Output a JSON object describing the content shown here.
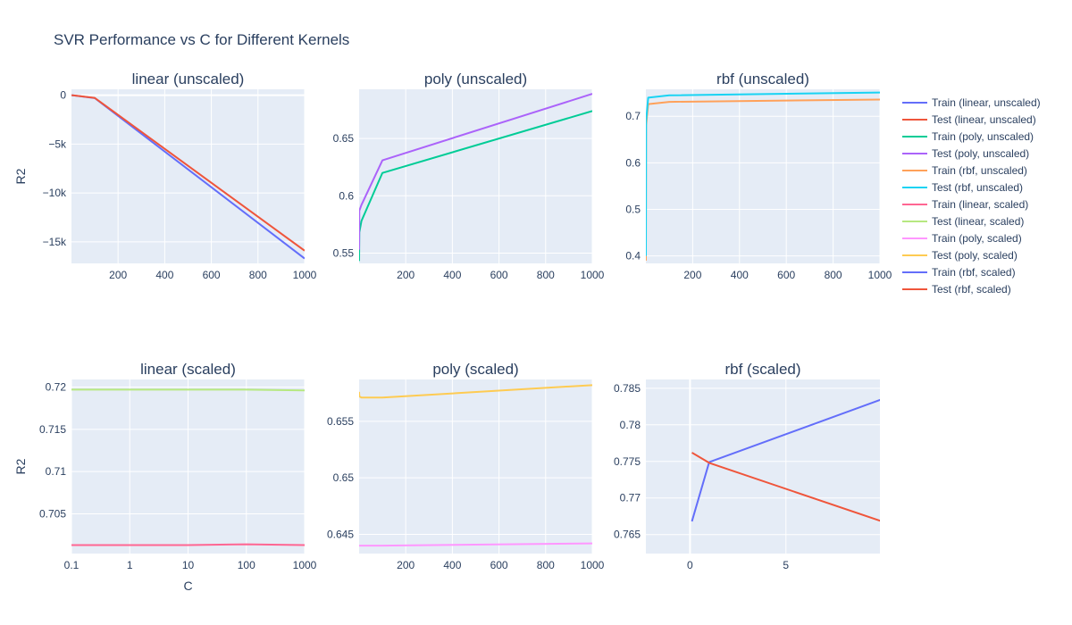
{
  "title": "SVR Performance vs C for Different Kernels",
  "chart_data": [
    {
      "type": "line",
      "title": "linear (unscaled)",
      "xlabel": "",
      "ylabel": "R2",
      "xscale": "linear",
      "xlim": [
        0.1,
        1000
      ],
      "ylim": [
        -17200,
        600
      ],
      "xticks": [
        200,
        400,
        600,
        800,
        1000
      ],
      "xtick_labels": [
        "200",
        "400",
        "600",
        "800",
        "1000"
      ],
      "yticks": [
        0,
        -5000,
        -10000,
        -15000
      ],
      "ytick_labels": [
        "0",
        "−5k",
        "−10k",
        "−15k"
      ],
      "series": [
        {
          "name": "Train (linear, unscaled)",
          "x": [
            0.1,
            1,
            10,
            100,
            1000
          ],
          "y": [
            0.72,
            -10,
            -30,
            -300,
            -16700
          ]
        },
        {
          "name": "Test (linear, unscaled)",
          "x": [
            0.1,
            1,
            10,
            100,
            1000
          ],
          "y": [
            0.72,
            -9,
            -28,
            -280,
            -15900
          ]
        }
      ]
    },
    {
      "type": "line",
      "title": "poly (unscaled)",
      "xlabel": "",
      "ylabel": "",
      "xscale": "linear",
      "xlim": [
        0.1,
        1000
      ],
      "ylim": [
        0.541,
        0.693
      ],
      "xticks": [
        200,
        400,
        600,
        800,
        1000
      ],
      "xtick_labels": [
        "200",
        "400",
        "600",
        "800",
        "1000"
      ],
      "yticks": [
        0.55,
        0.6,
        0.65
      ],
      "ytick_labels": [
        "0.55",
        "0.6",
        "0.65"
      ],
      "series": [
        {
          "name": "Train (poly, unscaled)",
          "x": [
            0.1,
            1,
            10,
            100,
            1000
          ],
          "y": [
            0.543,
            0.568,
            0.578,
            0.62,
            0.674
          ]
        },
        {
          "name": "Test (poly, unscaled)",
          "x": [
            0.1,
            1,
            10,
            100,
            1000
          ],
          "y": [
            0.553,
            0.587,
            0.592,
            0.631,
            0.689
          ]
        }
      ]
    },
    {
      "type": "line",
      "title": "rbf (unscaled)",
      "xlabel": "",
      "ylabel": "",
      "xscale": "linear",
      "xlim": [
        0.1,
        1000
      ],
      "ylim": [
        0.384,
        0.758
      ],
      "xticks": [
        200,
        400,
        600,
        800,
        1000
      ],
      "xtick_labels": [
        "200",
        "400",
        "600",
        "800",
        "1000"
      ],
      "yticks": [
        0.4,
        0.5,
        0.6,
        0.7
      ],
      "ytick_labels": [
        "0.4",
        "0.5",
        "0.6",
        "0.7"
      ],
      "series": [
        {
          "name": "Train (rbf, unscaled)",
          "x": [
            0.1,
            1,
            10,
            100,
            1000
          ],
          "y": [
            0.39,
            0.68,
            0.726,
            0.731,
            0.736
          ]
        },
        {
          "name": "Test (rbf, unscaled)",
          "x": [
            0.1,
            1,
            10,
            100,
            1000
          ],
          "y": [
            0.4,
            0.69,
            0.74,
            0.745,
            0.751
          ]
        }
      ]
    },
    {
      "type": "line",
      "title": "linear (scaled)",
      "xlabel": "C",
      "ylabel": "R2",
      "xscale": "log",
      "xlim": [
        0.1,
        1000
      ],
      "ylim": [
        0.7003,
        0.7209
      ],
      "xticks": [
        0.1,
        1,
        10,
        100,
        1000
      ],
      "xtick_labels": [
        "0.1",
        "1",
        "10",
        "100",
        "1000"
      ],
      "yticks": [
        0.705,
        0.71,
        0.715,
        0.72
      ],
      "ytick_labels": [
        "0.705",
        "0.71",
        "0.715",
        "0.72"
      ],
      "series": [
        {
          "name": "Train (linear, scaled)",
          "x": [
            0.1,
            1,
            10,
            100,
            1000
          ],
          "y": [
            0.7013,
            0.7013,
            0.7013,
            0.7014,
            0.7013
          ]
        },
        {
          "name": "Test (linear, scaled)",
          "x": [
            0.1,
            1,
            10,
            100,
            1000
          ],
          "y": [
            0.7197,
            0.7197,
            0.7197,
            0.7197,
            0.7196
          ]
        }
      ]
    },
    {
      "type": "line",
      "title": "poly (scaled)",
      "xlabel": "",
      "ylabel": "",
      "xscale": "linear",
      "xlim": [
        0.1,
        1000
      ],
      "ylim": [
        0.6433,
        0.6587
      ],
      "xticks": [
        200,
        400,
        600,
        800,
        1000
      ],
      "xtick_labels": [
        "200",
        "400",
        "600",
        "800",
        "1000"
      ],
      "yticks": [
        0.645,
        0.65,
        0.655
      ],
      "ytick_labels": [
        "0.645",
        "0.65",
        "0.655"
      ],
      "series": [
        {
          "name": "Train (poly, scaled)",
          "x": [
            0.1,
            1,
            10,
            100,
            1000
          ],
          "y": [
            0.644,
            0.644,
            0.644,
            0.644,
            0.6442
          ]
        },
        {
          "name": "Test (poly, scaled)",
          "x": [
            0.1,
            1,
            10,
            100,
            1000
          ],
          "y": [
            0.6576,
            0.6572,
            0.6571,
            0.6571,
            0.6582
          ]
        }
      ]
    },
    {
      "type": "line",
      "title": "rbf (scaled)",
      "xlabel": "",
      "ylabel": "",
      "xscale": "linear",
      "xlim": [
        -2.3,
        9.9
      ],
      "ylim": [
        0.7624,
        0.7862
      ],
      "xticks": [
        0,
        5
      ],
      "xtick_labels": [
        "0",
        "5"
      ],
      "yticks": [
        0.765,
        0.77,
        0.775,
        0.78,
        0.785
      ],
      "ytick_labels": [
        "0.765",
        "0.77",
        "0.775",
        "0.78",
        "0.785"
      ],
      "series": [
        {
          "name": "Train (rbf, scaled)",
          "x": [
            0.1,
            1,
            10
          ],
          "y": [
            0.7668,
            0.7749,
            0.7835
          ]
        },
        {
          "name": "Test (rbf, scaled)",
          "x": [
            0.1,
            1,
            10
          ],
          "y": [
            0.7762,
            0.7748,
            0.7668
          ]
        }
      ]
    }
  ],
  "legend": {
    "placement": "right",
    "items": [
      {
        "label": "Train (linear, unscaled)",
        "color": "#636efa"
      },
      {
        "label": "Test (linear, unscaled)",
        "color": "#EF553B"
      },
      {
        "label": "Train (poly, unscaled)",
        "color": "#00cc96"
      },
      {
        "label": "Test (poly, unscaled)",
        "color": "#ab63fa"
      },
      {
        "label": "Train (rbf, unscaled)",
        "color": "#FFA15A"
      },
      {
        "label": "Test (rbf, unscaled)",
        "color": "#19d3f3"
      },
      {
        "label": "Train (linear, scaled)",
        "color": "#FF6692"
      },
      {
        "label": "Test (linear, scaled)",
        "color": "#B6E880"
      },
      {
        "label": "Train (poly, scaled)",
        "color": "#FF97FF"
      },
      {
        "label": "Test (poly, scaled)",
        "color": "#FECB52"
      },
      {
        "label": "Train (rbf, scaled)",
        "color": "#636efa"
      },
      {
        "label": "Test (rbf, scaled)",
        "color": "#EF553B"
      }
    ]
  },
  "colors": {
    "plot_bg": "#E5ECF6",
    "grid": "#ffffff",
    "text": "#2a3f5f"
  }
}
